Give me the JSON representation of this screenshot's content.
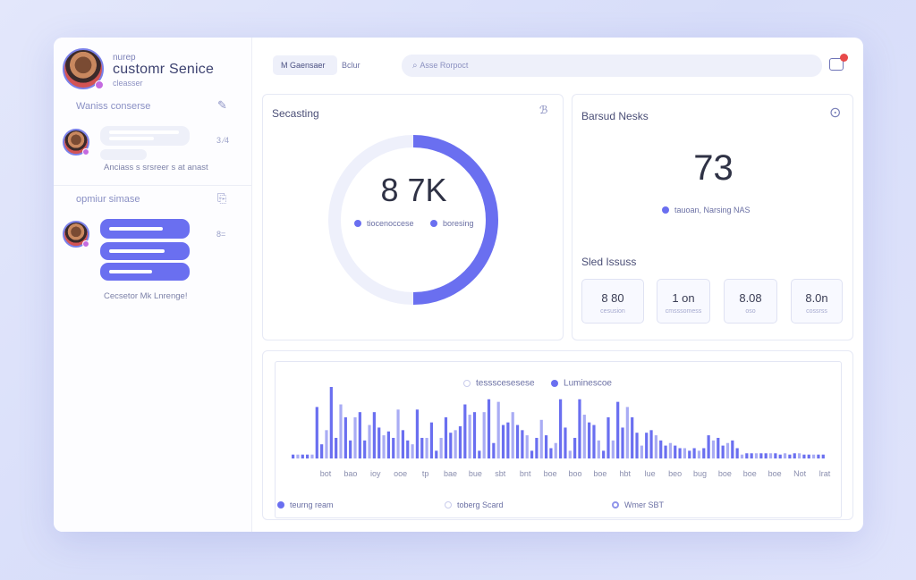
{
  "profile": {
    "small_label": "nurep",
    "title": "customr Senice",
    "subtitle": "cleasser"
  },
  "sidebar": {
    "section1_label": "Waniss conserse",
    "section2_label": "opmiur simase",
    "message1_time": "3 ⁄4",
    "message1_caption": "Anciass s srsreer s at anast",
    "message2_time": "8=",
    "message2_caption": "Cecsetor Mk Lnrenge!"
  },
  "topbar": {
    "tab_active": "M Gaensaer",
    "tab_other": "Bclur",
    "search_placeholder": "Asse Rorpoct"
  },
  "card_donut": {
    "title": "Secasting",
    "icon": "ℬ",
    "center_value": "8 7K",
    "legend": [
      "tiocenoccese",
      "boresing"
    ],
    "fraction": 0.5
  },
  "card_stats": {
    "title": "Barsud Nesks",
    "big_value": "73",
    "legend": "tauoan, Narsing NAS",
    "subsection_title": "Sled Issuss",
    "tiles": [
      {
        "value": "8 80",
        "label": "cesusion"
      },
      {
        "value": "1 on",
        "label": "cmsssomess"
      },
      {
        "value": "8.08",
        "label": "oso"
      },
      {
        "value": "8.0n",
        "label": "cossrss"
      }
    ]
  },
  "card_chart": {
    "legend_top": [
      "tessscesesese",
      "Luminescoe"
    ],
    "legend_bottom": [
      "teurng ream",
      "toberg Scard",
      "Wmer SBT"
    ]
  },
  "chart_data": {
    "type": "bar",
    "title": "",
    "xlabel": "",
    "ylabel": "",
    "ylim": [
      0,
      100
    ],
    "x_ticks": [
      "bot",
      "bao",
      "ioy",
      "ooe",
      "tp",
      "bae",
      "bue",
      "sbt",
      "bnt",
      "boe",
      "boo",
      "boe",
      "hbt",
      "lue",
      "beo",
      "bug",
      "boe",
      "boe",
      "boe",
      "Not",
      "lrat"
    ],
    "values": [
      3,
      3,
      3,
      3,
      3,
      40,
      11,
      22,
      56,
      16,
      42,
      32,
      14,
      32,
      36,
      14,
      26,
      36,
      24,
      18,
      21,
      16,
      38,
      22,
      14,
      11,
      38,
      16,
      16,
      28,
      6,
      16,
      32,
      20,
      22,
      25,
      42,
      34,
      36,
      6,
      36,
      46,
      12,
      44,
      26,
      28,
      36,
      26,
      22,
      18,
      6,
      16,
      30,
      18,
      8,
      12,
      46,
      24,
      6,
      16,
      46,
      34,
      28,
      26,
      14,
      6,
      32,
      14,
      44,
      24,
      40,
      32,
      20,
      10,
      20,
      22,
      18,
      14,
      10,
      12,
      10,
      8,
      8,
      6,
      8,
      6,
      8,
      18,
      14,
      16,
      10,
      12,
      14,
      8,
      3,
      4,
      4,
      4,
      4,
      4,
      4,
      4,
      3,
      4,
      3,
      4,
      4,
      3,
      3,
      3,
      3,
      3
    ]
  },
  "colors": {
    "accent": "#6a6ff0",
    "bar_light": "#a9acf4",
    "track": "#eef0fb"
  }
}
